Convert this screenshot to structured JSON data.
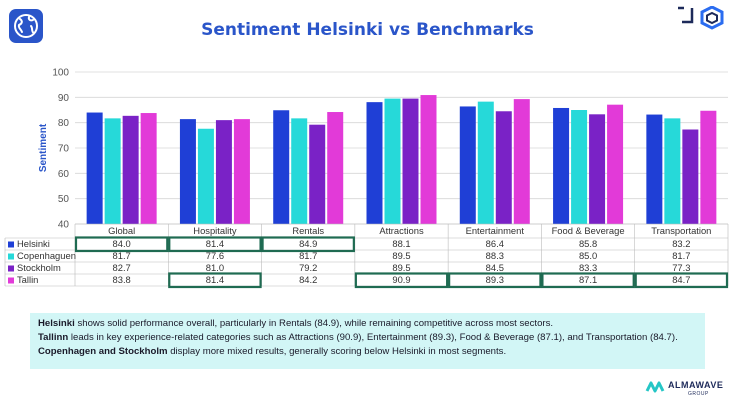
{
  "title": "Sentiment Helsinki vs Benchmarks",
  "colors": {
    "accent": "#2a55c9",
    "highlight_box": "#1f6b52",
    "note_bg": "#d2f6f6"
  },
  "chart_data": {
    "type": "bar",
    "ylabel": "Sentiment",
    "ylim": [
      40,
      100
    ],
    "yticks": [
      40,
      50,
      60,
      70,
      80,
      90,
      100
    ],
    "grid": true,
    "legend": "table-left",
    "categories": [
      "Global",
      "Hospitality",
      "Rentals",
      "Attractions",
      "Entertainment",
      "Food & Beverage",
      "Transportation"
    ],
    "series": [
      {
        "name": "Helsinki",
        "color": "#1f3fd6",
        "values": [
          84.0,
          81.4,
          84.9,
          88.1,
          86.4,
          85.8,
          83.2
        ],
        "labels": [
          "84.0",
          "81.4",
          "84.9",
          "88.1",
          "86.4",
          "85.8",
          "83.2"
        ]
      },
      {
        "name": "Copenhaguen",
        "color": "#26d9d9",
        "values": [
          81.7,
          77.6,
          81.7,
          89.5,
          88.3,
          85.0,
          81.7
        ],
        "labels": [
          "81.7",
          "77.6",
          "81.7",
          "89.5",
          "88.3",
          "85.0",
          "81.7"
        ]
      },
      {
        "name": "Stockholm",
        "color": "#7a22c6",
        "values": [
          82.7,
          81.0,
          79.2,
          89.5,
          84.5,
          83.3,
          77.3
        ],
        "labels": [
          "82.7",
          "81.0",
          "79.2",
          "89.5",
          "84.5",
          "83.3",
          "77.3"
        ]
      },
      {
        "name": "Tallin",
        "color": "#e23ad8",
        "values": [
          83.8,
          81.4,
          84.2,
          90.9,
          89.3,
          87.1,
          84.7
        ],
        "labels": [
          "83.8",
          "81.4",
          "84.2",
          "90.9",
          "89.3",
          "87.1",
          "84.7"
        ]
      }
    ],
    "highlighted_cells": [
      {
        "series": 0,
        "category": 0
      },
      {
        "series": 0,
        "category": 1
      },
      {
        "series": 0,
        "category": 2
      },
      {
        "series": 3,
        "category": 1
      },
      {
        "series": 3,
        "category": 3
      },
      {
        "series": 3,
        "category": 4
      },
      {
        "series": 3,
        "category": 5
      },
      {
        "series": 3,
        "category": 6
      }
    ]
  },
  "note": {
    "line1": {
      "bold": "Helsinki",
      "text": " shows solid performance overall, particularly in Rentals (84.9), while remaining competitive across most sectors."
    },
    "line2": {
      "bold": "Tallinn",
      "text": " leads in key experience-related categories such as Attractions (90.9), Entertainment (89.3), Food & Beverage (87.1), and Transportation (84.7)."
    },
    "line3": {
      "bold": "Copenhagen and Stockholm",
      "text": " display more mixed results, generally scoring below Helsinki in most segments."
    }
  },
  "brand": {
    "name": "ALMAWAVE",
    "sub": "GROUP"
  }
}
